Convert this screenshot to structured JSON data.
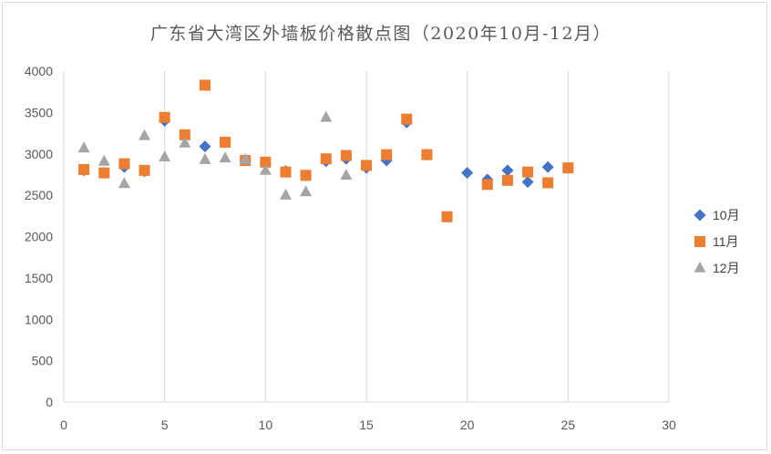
{
  "chart_data": {
    "type": "scatter",
    "title": "广东省大湾区外墙板价格散点图（2020年10月-12月）",
    "xlabel": "",
    "ylabel": "",
    "xlim": [
      0,
      30
    ],
    "ylim": [
      0,
      4000
    ],
    "x_ticks": [
      "0",
      "5",
      "10",
      "15",
      "20",
      "25",
      "30"
    ],
    "y_ticks": [
      "0",
      "500",
      "1000",
      "1500",
      "2000",
      "2500",
      "3000",
      "3500",
      "4000"
    ],
    "grid": "vertical",
    "legend_position": "right",
    "series": [
      {
        "name": "10月",
        "marker": "diamond",
        "color": "#4472C4",
        "points": [
          [
            1,
            2800
          ],
          [
            2,
            2770
          ],
          [
            3,
            2840
          ],
          [
            4,
            2790
          ],
          [
            5,
            3400
          ],
          [
            6,
            3220
          ],
          [
            7,
            3090
          ],
          [
            8,
            3140
          ],
          [
            9,
            2920
          ],
          [
            10,
            2880
          ],
          [
            11,
            2790
          ],
          [
            12,
            2740
          ],
          [
            13,
            2910
          ],
          [
            14,
            2940
          ],
          [
            15,
            2830
          ],
          [
            16,
            2920
          ],
          [
            17,
            3380
          ],
          [
            18,
            2990
          ],
          [
            19,
            2240
          ],
          [
            20,
            2770
          ],
          [
            21,
            2690
          ],
          [
            22,
            2800
          ],
          [
            23,
            2660
          ],
          [
            24,
            2840
          ],
          [
            25,
            2830
          ]
        ]
      },
      {
        "name": "11月",
        "marker": "square",
        "color": "#ED7D31",
        "points": [
          [
            1,
            2810
          ],
          [
            2,
            2770
          ],
          [
            3,
            2880
          ],
          [
            4,
            2800
          ],
          [
            5,
            3440
          ],
          [
            6,
            3230
          ],
          [
            7,
            3830
          ],
          [
            8,
            3140
          ],
          [
            9,
            2920
          ],
          [
            10,
            2900
          ],
          [
            11,
            2780
          ],
          [
            12,
            2740
          ],
          [
            13,
            2940
          ],
          [
            14,
            2980
          ],
          [
            15,
            2860
          ],
          [
            16,
            2990
          ],
          [
            17,
            3420
          ],
          [
            18,
            2990
          ],
          [
            19,
            2240
          ],
          [
            21,
            2630
          ],
          [
            22,
            2680
          ],
          [
            23,
            2780
          ],
          [
            24,
            2650
          ],
          [
            25,
            2830
          ]
        ]
      },
      {
        "name": "12月",
        "marker": "triangle",
        "color": "#A5A5A5",
        "points": [
          [
            1,
            3070
          ],
          [
            2,
            2910
          ],
          [
            3,
            2640
          ],
          [
            4,
            3220
          ],
          [
            5,
            2960
          ],
          [
            6,
            3130
          ],
          [
            7,
            2930
          ],
          [
            8,
            2950
          ],
          [
            9,
            2930
          ],
          [
            10,
            2800
          ],
          [
            11,
            2500
          ],
          [
            12,
            2540
          ],
          [
            13,
            3440
          ],
          [
            14,
            2740
          ]
        ]
      }
    ]
  }
}
